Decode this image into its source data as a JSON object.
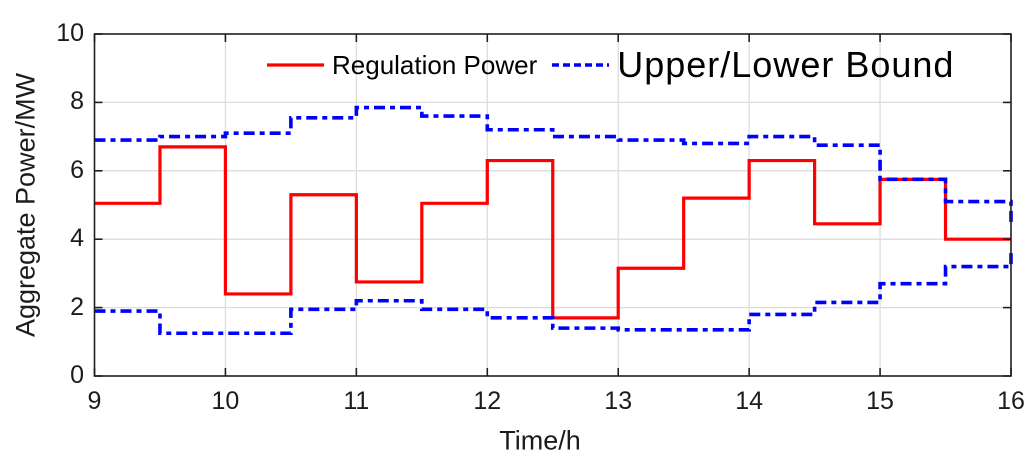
{
  "figure": {
    "ylabel": "Aggregate Power/MW",
    "xlabel": "Time/h"
  },
  "legend": {
    "items": [
      {
        "label": "Regulation Power",
        "color": "#ff0000",
        "style": "solid"
      },
      {
        "label": "Upper/Lower Bound",
        "color": "#0000ff",
        "style": "dash-dot"
      }
    ]
  },
  "chart_data": {
    "type": "line",
    "subtype": "stairs-step-plot",
    "title": "",
    "xlabel": "Time/h",
    "ylabel": "Aggregate Power/MW",
    "xlim": [
      9,
      16
    ],
    "ylim": [
      0,
      10
    ],
    "xticks": [
      9,
      10,
      11,
      12,
      13,
      14,
      15,
      16
    ],
    "yticks": [
      0,
      2,
      4,
      6,
      8,
      10
    ],
    "grid": true,
    "legend_position": "inside-top-center",
    "step_edges_h": [
      9,
      9.5,
      10,
      10.5,
      11,
      11.5,
      12,
      12.5,
      13,
      13.5,
      14,
      14.5,
      15,
      15.5,
      16
    ],
    "series": [
      {
        "name": "Regulation Power",
        "color": "#ff0000",
        "line_style": "solid",
        "values_mw": [
          5.05,
          6.7,
          2.4,
          5.3,
          2.75,
          5.05,
          6.3,
          1.7,
          3.15,
          5.2,
          6.3,
          4.45,
          5.75,
          4.0
        ]
      },
      {
        "name": "Upper Bound",
        "legend_label": "Upper/Lower Bound",
        "color": "#0000ff",
        "line_style": "dash-dot",
        "values_mw": [
          6.9,
          7.0,
          7.1,
          7.55,
          7.85,
          7.6,
          7.2,
          7.0,
          6.9,
          6.8,
          7.0,
          6.75,
          5.75,
          5.1
        ],
        "final_value_at_16h": 4.5
      },
      {
        "name": "Lower Bound",
        "legend_label": "Upper/Lower Bound",
        "color": "#0000ff",
        "line_style": "dash-dot",
        "values_mw": [
          1.9,
          1.25,
          1.25,
          1.95,
          2.2,
          1.95,
          1.7,
          1.4,
          1.35,
          1.35,
          1.8,
          2.15,
          2.7,
          3.2
        ],
        "final_value_at_16h": 3.6
      }
    ],
    "colors": {
      "series_red": "#ff0000",
      "series_blue": "#0000ff",
      "grid": "#dcdcdc",
      "axis": "#1f1f1f"
    }
  }
}
